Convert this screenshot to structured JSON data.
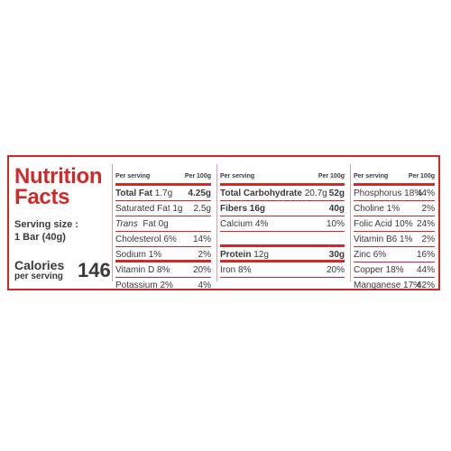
{
  "panel": {
    "title_line1": "Nutrition",
    "title_line2": "Facts",
    "serving_label": "Serving size :",
    "serving_value": "1 Bar (40g)",
    "calories_label": "Calories",
    "calories_sub": "per serving",
    "calories_value": "146",
    "header_per_serving": "Per serving",
    "header_per_100g": "Per 100g",
    "accent_color": "#cf2a27"
  },
  "col1": {
    "total_fat": {
      "label": "Total Fat",
      "serving": "1.7g",
      "per100": "4.25g"
    },
    "saturated_fat": {
      "label": "Saturated Fat",
      "serving": "1g",
      "per100": "2.5g"
    },
    "trans_fat": {
      "label_italic": "Trans",
      "label": "Fat",
      "serving": "0g"
    },
    "cholesterol": {
      "label": "Cholesterol",
      "serving": "6%",
      "per100": "14%"
    },
    "sodium": {
      "label": "Sodium",
      "serving": "1%",
      "per100": "2%"
    },
    "vitamin_d": {
      "label": "Vitamin D",
      "serving": "8%",
      "per100": "20%"
    },
    "potassium": {
      "label": "Potassium",
      "serving": "2%",
      "per100": "4%"
    }
  },
  "col2": {
    "total_carb": {
      "label": "Total Carbohydrate",
      "serving": "20.7g",
      "per100": "52g"
    },
    "fibers": {
      "label": "Fibers",
      "serving": "16g",
      "per100": "40g"
    },
    "calcium": {
      "label": "Calcium",
      "serving": "4%",
      "per100": "10%"
    },
    "protein": {
      "label": "Protein",
      "serving": "12g",
      "per100": "30g"
    },
    "iron": {
      "label": "Iron",
      "serving": "8%",
      "per100": "20%"
    }
  },
  "col3": {
    "phosphorus": {
      "label": "Phosphorus",
      "serving": "18%",
      "per100": "44%"
    },
    "choline": {
      "label": "Choline",
      "serving": "1%",
      "per100": "2%"
    },
    "folic_acid": {
      "label": "Folic Acid",
      "serving": "10%",
      "per100": "24%"
    },
    "vitamin_b6": {
      "label": "Vitamin B6",
      "serving": "1%",
      "per100": "2%"
    },
    "zinc": {
      "label": "Zinc",
      "serving": "6%",
      "per100": "16%"
    },
    "copper": {
      "label": "Copper",
      "serving": "18%",
      "per100": "44%"
    },
    "manganese": {
      "label": "Manganese",
      "serving": "17%",
      "per100": "42%"
    }
  }
}
